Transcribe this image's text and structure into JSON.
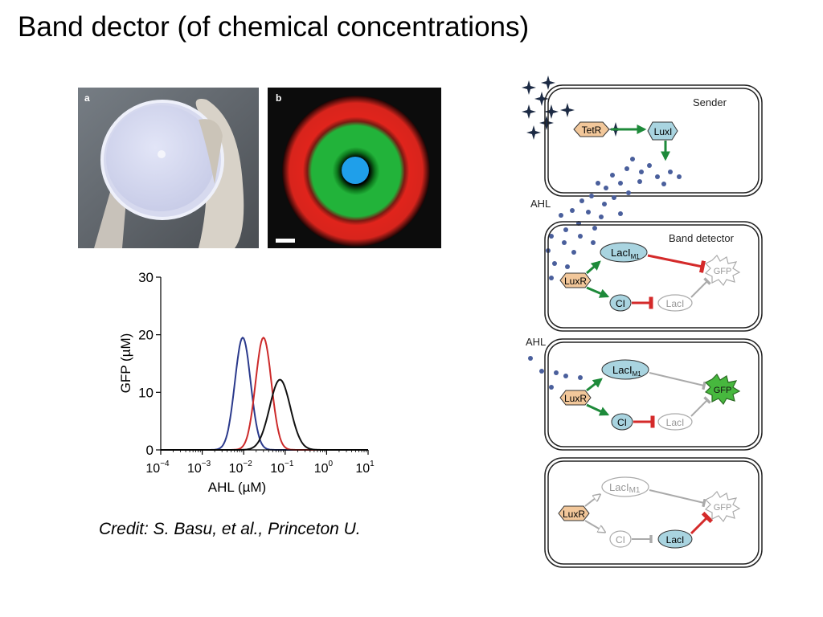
{
  "title": "Band dector (of chemical concentrations)",
  "credit": "Credit: S. Basu, et al., Princeton U.",
  "panel_labels": {
    "a": "a",
    "b": "b"
  },
  "chart_data": {
    "type": "line",
    "xlabel": "AHL (µM)",
    "ylabel": "GFP (µM)",
    "xscale": "log",
    "xlim": [
      0.0001,
      10
    ],
    "ylim": [
      0,
      30
    ],
    "x_ticks": [
      0.0001,
      0.001,
      0.01,
      0.1,
      1,
      10
    ],
    "x_tick_labels": [
      {
        "base": "10",
        "exp": "−4"
      },
      {
        "base": "10",
        "exp": "−3"
      },
      {
        "base": "10",
        "exp": "−2"
      },
      {
        "base": "10",
        "exp": "−1"
      },
      {
        "base": "10",
        "exp": "0"
      },
      {
        "base": "10",
        "exp": "1"
      }
    ],
    "y_ticks": [
      0,
      10,
      20,
      30
    ],
    "y_tick_labels": [
      "0",
      "10",
      "20",
      "30"
    ],
    "series": [
      {
        "color": "#2b3a8c",
        "peak_x": 0.0095,
        "peak_y": 19.5,
        "log_sigma": 0.19
      },
      {
        "color": "#cc2a2a",
        "peak_x": 0.03,
        "peak_y": 19.5,
        "log_sigma": 0.19
      },
      {
        "color": "#111111",
        "peak_x": 0.075,
        "peak_y": 12.2,
        "log_sigma": 0.25
      }
    ]
  },
  "diagram": {
    "sender": {
      "title": "Sender",
      "tetr": "TetR",
      "luxi": "LuxI"
    },
    "ahl_label": "AHL",
    "band": {
      "title": "Band detector",
      "lacim1_main": "LacI",
      "lacim1_sub": "M1",
      "luxr": "LuxR",
      "ci": "CI",
      "laci": "LacI",
      "gfp": "GFP"
    },
    "colors": {
      "arrow_green": "#1e8a3a",
      "repress_red": "#d42a2a",
      "node_blue": "#a9d4e0",
      "node_tan": "#f2c79a",
      "gfp_green": "#47b83e",
      "dots": "#4a5f9c",
      "inactive": "#aaaaaa"
    }
  }
}
